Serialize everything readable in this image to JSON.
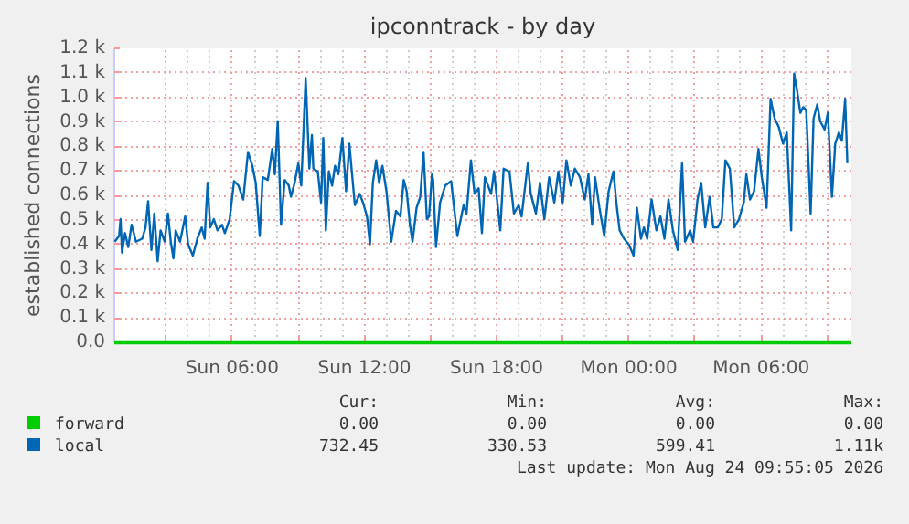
{
  "chart_data": {
    "type": "line",
    "title": "ipconntrack - by day",
    "ylabel": "established connections",
    "xlim": [
      "2026-08-23T00:39",
      "2026-08-24T10:06"
    ],
    "ylim": [
      0,
      1200
    ],
    "xticks": [
      {
        "value": "2026-08-23T03:00",
        "label": null
      },
      {
        "value": "2026-08-23T06:00",
        "label": "Sun 06:00"
      },
      {
        "value": "2026-08-23T09:00",
        "label": null
      },
      {
        "value": "2026-08-23T12:00",
        "label": "Sun 12:00"
      },
      {
        "value": "2026-08-23T15:00",
        "label": null
      },
      {
        "value": "2026-08-23T18:00",
        "label": "Sun 18:00"
      },
      {
        "value": "2026-08-23T21:00",
        "label": null
      },
      {
        "value": "2026-08-24T00:00",
        "label": "Mon 00:00"
      },
      {
        "value": "2026-08-24T03:00",
        "label": null
      },
      {
        "value": "2026-08-24T06:00",
        "label": "Mon 06:00"
      },
      {
        "value": "2026-08-24T09:00",
        "label": null
      }
    ],
    "yticks": [
      {
        "value": 0,
        "label": "0.0"
      },
      {
        "value": 100,
        "label": "0.1 k"
      },
      {
        "value": 200,
        "label": "0.2 k"
      },
      {
        "value": 300,
        "label": "0.3 k"
      },
      {
        "value": 400,
        "label": "0.4 k"
      },
      {
        "value": 500,
        "label": "0.5 k"
      },
      {
        "value": 600,
        "label": "0.6 k"
      },
      {
        "value": 700,
        "label": "0.7 k"
      },
      {
        "value": 800,
        "label": "0.8 k"
      },
      {
        "value": 900,
        "label": "0.9 k"
      },
      {
        "value": 1000,
        "label": "1.0 k"
      },
      {
        "value": 1100,
        "label": "1.1 k"
      },
      {
        "value": 1200,
        "label": "1.2 k"
      }
    ],
    "grid": true,
    "legend": "bottom",
    "series": [
      {
        "name": "forward",
        "color": "#00cc00",
        "x": [
          "2026-08-23T00:39",
          "2026-08-24T10:06"
        ],
        "values": [
          0,
          0
        ]
      },
      {
        "name": "local",
        "color": "#0066b3",
        "x": [
          "2026-08-23T00:40",
          "2026-08-23T00:52",
          "2026-08-23T00:56",
          "2026-08-23T01:00",
          "2026-08-23T01:08",
          "2026-08-23T01:17",
          "2026-08-23T01:26",
          "2026-08-23T01:38",
          "2026-08-23T01:55",
          "2026-08-23T02:04",
          "2026-08-23T02:11",
          "2026-08-23T02:20",
          "2026-08-23T02:28",
          "2026-08-23T02:37",
          "2026-08-23T02:45",
          "2026-08-23T02:56",
          "2026-08-23T03:05",
          "2026-08-23T03:13",
          "2026-08-23T03:20",
          "2026-08-23T03:26",
          "2026-08-23T03:38",
          "2026-08-23T03:52",
          "2026-08-23T04:00",
          "2026-08-23T04:13",
          "2026-08-23T04:25",
          "2026-08-23T04:37",
          "2026-08-23T04:45",
          "2026-08-23T04:53",
          "2026-08-23T05:00",
          "2026-08-23T05:10",
          "2026-08-23T05:20",
          "2026-08-23T05:32",
          "2026-08-23T05:40",
          "2026-08-23T05:53",
          "2026-08-23T06:05",
          "2026-08-23T06:17",
          "2026-08-23T06:30",
          "2026-08-23T06:43",
          "2026-08-23T06:55",
          "2026-08-23T07:04",
          "2026-08-23T07:15",
          "2026-08-23T07:23",
          "2026-08-23T07:37",
          "2026-08-23T07:49",
          "2026-08-23T07:56",
          "2026-08-23T08:04",
          "2026-08-23T08:13",
          "2026-08-23T08:23",
          "2026-08-23T08:34",
          "2026-08-23T08:40",
          "2026-08-23T08:50",
          "2026-08-23T09:00",
          "2026-08-23T09:08",
          "2026-08-23T09:20",
          "2026-08-23T09:30",
          "2026-08-23T09:37",
          "2026-08-23T09:41",
          "2026-08-23T09:53",
          "2026-08-23T10:02",
          "2026-08-23T10:08",
          "2026-08-23T10:15",
          "2026-08-23T10:23",
          "2026-08-23T10:32",
          "2026-08-23T10:40",
          "2026-08-23T10:49",
          "2026-08-23T11:00",
          "2026-08-23T11:10",
          "2026-08-23T11:19",
          "2026-08-23T11:25",
          "2026-08-23T11:34",
          "2026-08-23T11:47",
          "2026-08-23T11:56",
          "2026-08-23T12:07",
          "2026-08-23T12:15",
          "2026-08-23T12:23",
          "2026-08-23T12:32",
          "2026-08-23T12:40",
          "2026-08-23T12:49",
          "2026-08-23T13:00",
          "2026-08-23T13:13",
          "2026-08-23T13:26",
          "2026-08-23T13:38",
          "2026-08-23T13:47",
          "2026-08-23T13:55",
          "2026-08-23T14:04",
          "2026-08-23T14:11",
          "2026-08-23T14:22",
          "2026-08-23T14:32",
          "2026-08-23T14:41",
          "2026-08-23T14:50",
          "2026-08-23T14:56",
          "2026-08-23T15:04",
          "2026-08-23T15:07",
          "2026-08-23T15:15",
          "2026-08-23T15:26",
          "2026-08-23T15:40",
          "2026-08-23T15:56",
          "2026-08-23T16:13",
          "2026-08-23T16:30",
          "2026-08-23T16:38",
          "2026-08-23T16:50",
          "2026-08-23T17:00",
          "2026-08-23T17:11",
          "2026-08-23T17:20",
          "2026-08-23T17:28",
          "2026-08-23T17:45",
          "2026-08-23T17:53",
          "2026-08-23T18:10",
          "2026-08-23T18:19",
          "2026-08-23T18:35",
          "2026-08-23T18:47",
          "2026-08-23T19:00",
          "2026-08-23T19:08",
          "2026-08-23T19:25",
          "2026-08-23T19:33",
          "2026-08-23T19:47",
          "2026-08-23T19:58",
          "2026-08-23T20:10",
          "2026-08-23T20:23",
          "2026-08-23T20:37",
          "2026-08-23T20:48",
          "2026-08-23T21:00",
          "2026-08-23T21:10",
          "2026-08-23T21:22",
          "2026-08-23T21:33",
          "2026-08-23T21:47",
          "2026-08-23T22:00",
          "2026-08-23T22:10",
          "2026-08-23T22:20",
          "2026-08-23T22:28",
          "2026-08-23T22:40",
          "2026-08-23T22:53",
          "2026-08-23T23:05",
          "2026-08-23T23:18",
          "2026-08-23T23:26",
          "2026-08-23T23:35",
          "2026-08-23T23:47",
          "2026-08-24T00:00",
          "2026-08-24T00:13",
          "2026-08-24T00:22",
          "2026-08-24T00:33",
          "2026-08-24T00:41",
          "2026-08-24T00:50",
          "2026-08-24T01:02",
          "2026-08-24T01:15",
          "2026-08-24T01:26",
          "2026-08-24T01:37",
          "2026-08-24T01:48",
          "2026-08-24T02:00",
          "2026-08-24T02:13",
          "2026-08-24T02:25",
          "2026-08-24T02:33",
          "2026-08-24T02:47",
          "2026-08-24T02:55",
          "2026-08-24T03:07",
          "2026-08-24T03:17",
          "2026-08-24T03:28",
          "2026-08-24T03:40",
          "2026-08-24T03:50",
          "2026-08-24T04:02",
          "2026-08-24T04:13",
          "2026-08-24T04:23",
          "2026-08-24T04:35",
          "2026-08-24T04:47",
          "2026-08-24T05:00",
          "2026-08-24T05:13",
          "2026-08-24T05:20",
          "2026-08-24T05:30",
          "2026-08-24T05:41",
          "2026-08-24T05:53",
          "2026-08-24T06:02",
          "2026-08-24T06:15",
          "2026-08-24T06:26",
          "2026-08-24T06:37",
          "2026-08-24T06:48",
          "2026-08-24T07:00",
          "2026-08-24T07:10",
          "2026-08-24T07:22",
          "2026-08-24T07:30",
          "2026-08-24T07:38",
          "2026-08-24T07:47",
          "2026-08-24T07:55",
          "2026-08-24T08:03",
          "2026-08-24T08:15",
          "2026-08-24T08:23",
          "2026-08-24T08:33",
          "2026-08-24T08:41",
          "2026-08-24T08:53",
          "2026-08-24T09:02",
          "2026-08-24T09:13",
          "2026-08-24T09:22",
          "2026-08-24T09:32",
          "2026-08-24T09:40",
          "2026-08-24T09:49",
          "2026-08-24T09:55"
        ],
        "values": [
          411,
          434,
          503,
          366,
          446,
          389,
          480,
          411,
          423,
          469,
          576,
          377,
          526,
          331,
          457,
          411,
          526,
          407,
          343,
          457,
          411,
          514,
          400,
          354,
          423,
          469,
          423,
          651,
          469,
          503,
          457,
          480,
          446,
          503,
          658,
          640,
          583,
          777,
          720,
          651,
          434,
          674,
          663,
          789,
          686,
          903,
          480,
          663,
          640,
          594,
          651,
          731,
          640,
          1079,
          709,
          846,
          709,
          697,
          571,
          834,
          457,
          697,
          640,
          720,
          686,
          834,
          617,
          811,
          709,
          560,
          606,
          571,
          514,
          400,
          651,
          743,
          651,
          720,
          617,
          411,
          537,
          514,
          663,
          617,
          480,
          411,
          549,
          594,
          777,
          503,
          514,
          686,
          663,
          389,
          571,
          640,
          658,
          434,
          560,
          526,
          743,
          606,
          629,
          446,
          674,
          606,
          697,
          457,
          709,
          697,
          526,
          560,
          514,
          731,
          606,
          526,
          651,
          503,
          674,
          571,
          697,
          571,
          743,
          640,
          709,
          674,
          583,
          686,
          480,
          674,
          549,
          434,
          617,
          697,
          571,
          457,
          423,
          400,
          354,
          549,
          423,
          469,
          423,
          583,
          457,
          514,
          423,
          583,
          457,
          377,
          731,
          411,
          457,
          411,
          583,
          651,
          469,
          594,
          469,
          469,
          503,
          743,
          709,
          469,
          503,
          571,
          686,
          583,
          617,
          789,
          674,
          549,
          994,
          914,
          880,
          811,
          857,
          457,
          1097,
          1029,
          937,
          960,
          949,
          526,
          914,
          971,
          903,
          869,
          937,
          594,
          811,
          857,
          823,
          994,
          731
        ]
      }
    ],
    "annotations": [
      "Cur:",
      "Min:",
      "Avg:",
      "Max:",
      "0.00",
      "0.00",
      "0.00",
      "0.00",
      "732.45",
      "330.53",
      "599.41",
      "1.11k",
      "Last update: Mon Aug 24 09:55:05 2026"
    ]
  }
}
